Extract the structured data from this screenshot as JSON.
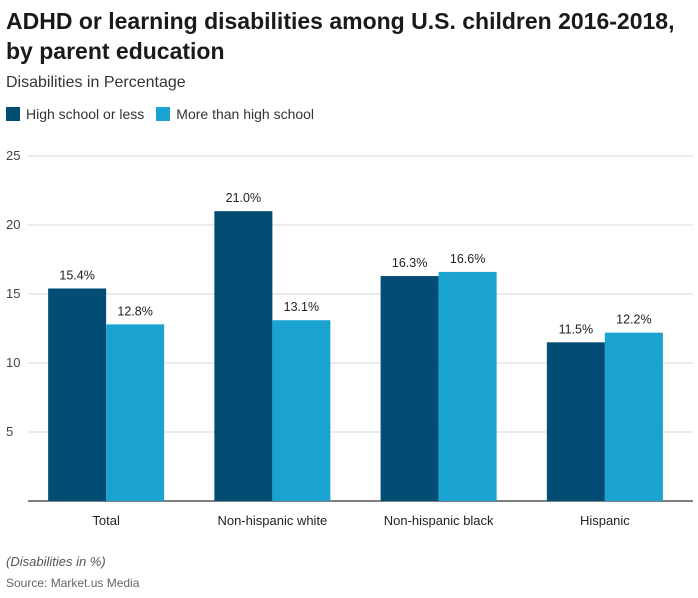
{
  "title": "ADHD or learning disabilities among U.S. children 2016-2018, by parent education",
  "subtitle": "Disabilities in Percentage",
  "note": "(Disabilities in %)",
  "source": "Source: Market.us Media",
  "colors": {
    "series_1": "#034d74",
    "series_2": "#1aa3d1",
    "grid": "#d9d9d9",
    "axis": "#333333"
  },
  "chart_data": {
    "type": "bar",
    "categories": [
      "Total",
      "Non-hispanic white",
      "Non-hispanic black",
      "Hispanic"
    ],
    "series": [
      {
        "name": "High school or less",
        "values": [
          15.4,
          21.0,
          16.3,
          11.5
        ],
        "labels": [
          "15.4%",
          "21.0%",
          "16.3%",
          "11.5%"
        ]
      },
      {
        "name": "More than high school",
        "values": [
          12.8,
          13.1,
          16.6,
          12.2
        ],
        "labels": [
          "12.8%",
          "13.1%",
          "16.6%",
          "12.2%"
        ]
      }
    ],
    "ylim": [
      0,
      25
    ],
    "yticks": [
      5,
      10,
      15,
      20,
      25
    ],
    "ytick_labels": [
      "5",
      "10",
      "15",
      "20",
      "25"
    ],
    "grid": true,
    "legend": "top-left"
  }
}
